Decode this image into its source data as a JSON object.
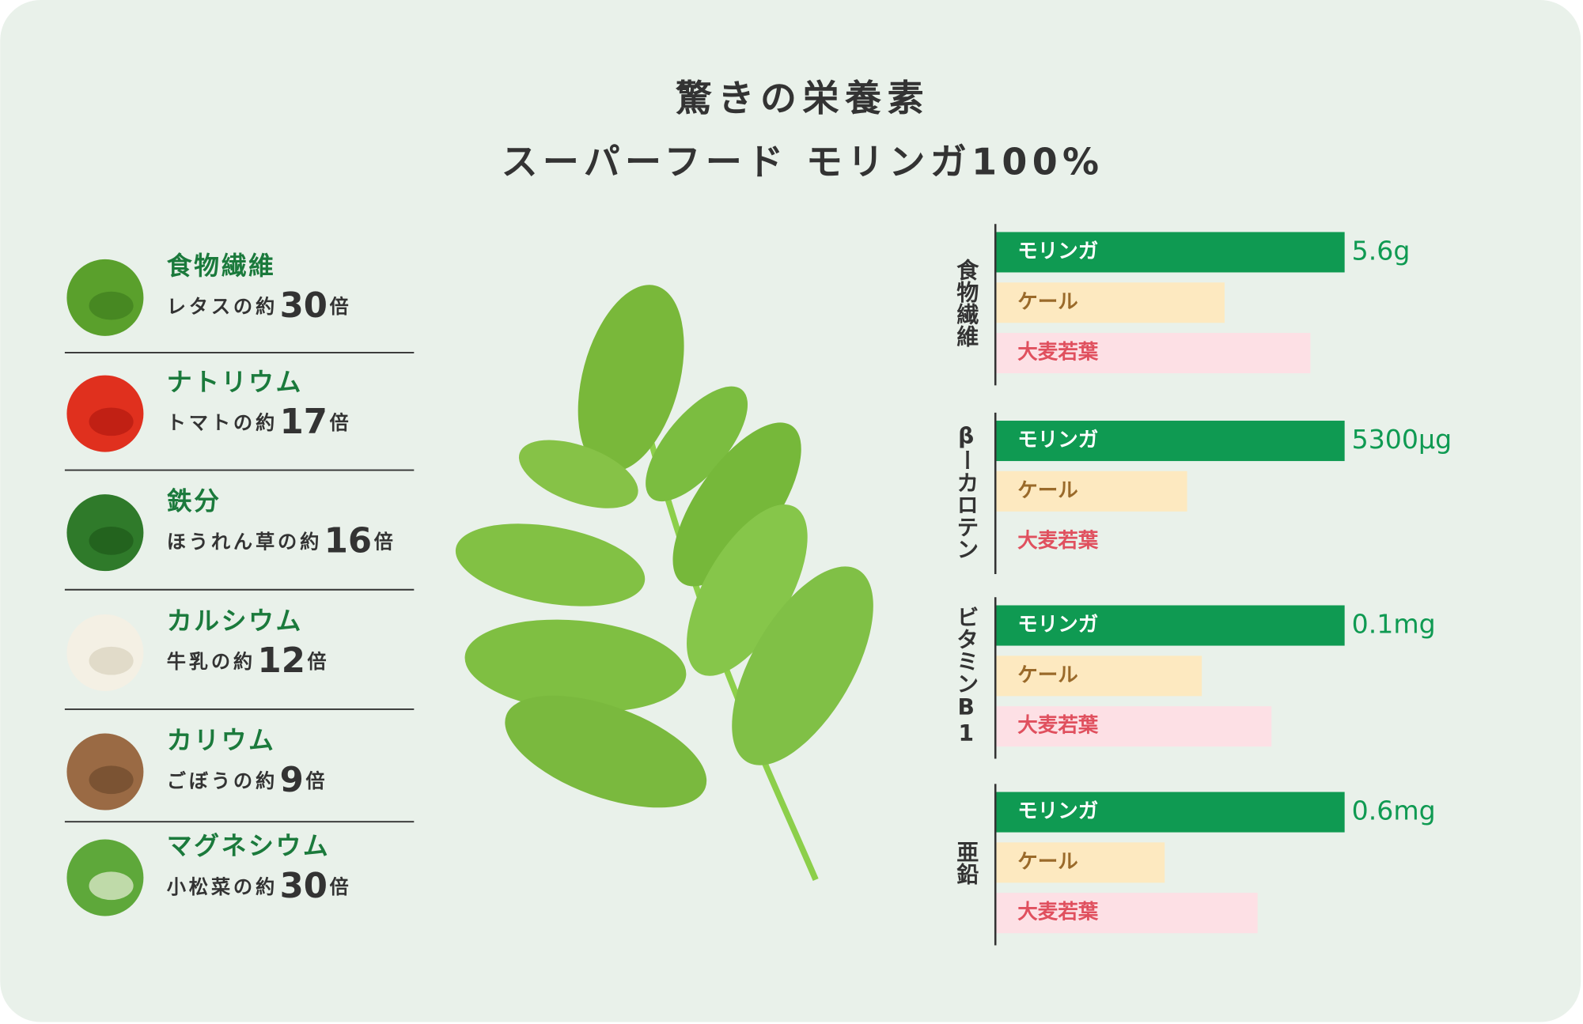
{
  "header": {
    "title": "驚きの栄養素",
    "subtitle": "スーパーフード モリンガ100%"
  },
  "nutrients": [
    {
      "name": "食物繊維",
      "text": "レタスの約",
      "multiple": 30,
      "suffix": "倍"
    },
    {
      "name": "ナトリウム",
      "text": "トマトの約",
      "multiple": 17,
      "suffix": "倍"
    },
    {
      "name": "鉄分",
      "text": "ほうれん草の約",
      "multiple": 16,
      "suffix": "倍"
    },
    {
      "name": "カルシウム",
      "text": "牛乳の約",
      "multiple": 12,
      "suffix": "倍"
    },
    {
      "name": "カリウム",
      "text": "ごぼうの約",
      "multiple": 9,
      "suffix": "倍"
    },
    {
      "name": "マグネシウム",
      "text": "小松菜の約",
      "multiple": 30,
      "suffix": "倍"
    }
  ],
  "comparison": {
    "items": [
      {
        "name": "モリンガ",
        "color": "#0f9a52",
        "text_color": "#ffffff"
      },
      {
        "name": "ケール",
        "color": "#fde9c0",
        "text_color": "#9a6a2a"
      },
      {
        "name": "大麦若葉",
        "color": "#fde0e5",
        "text_color": "#e0505e"
      }
    ],
    "groups": [
      {
        "label": "食物繊維",
        "values": [
          5.6,
          3.67,
          5.05
        ],
        "value_label": "5.6g"
      },
      {
        "label": "βーカロテン",
        "values": [
          5300,
          2903,
          null
        ],
        "value_label": "5300μg"
      },
      {
        "label": "ビタミンB1",
        "values": [
          0.1,
          0.059,
          0.079
        ],
        "value_label": "0.1mg"
      },
      {
        "label": "亜鉛",
        "values": [
          0.6,
          0.29,
          0.45
        ],
        "value_label": "0.6mg"
      }
    ]
  }
}
